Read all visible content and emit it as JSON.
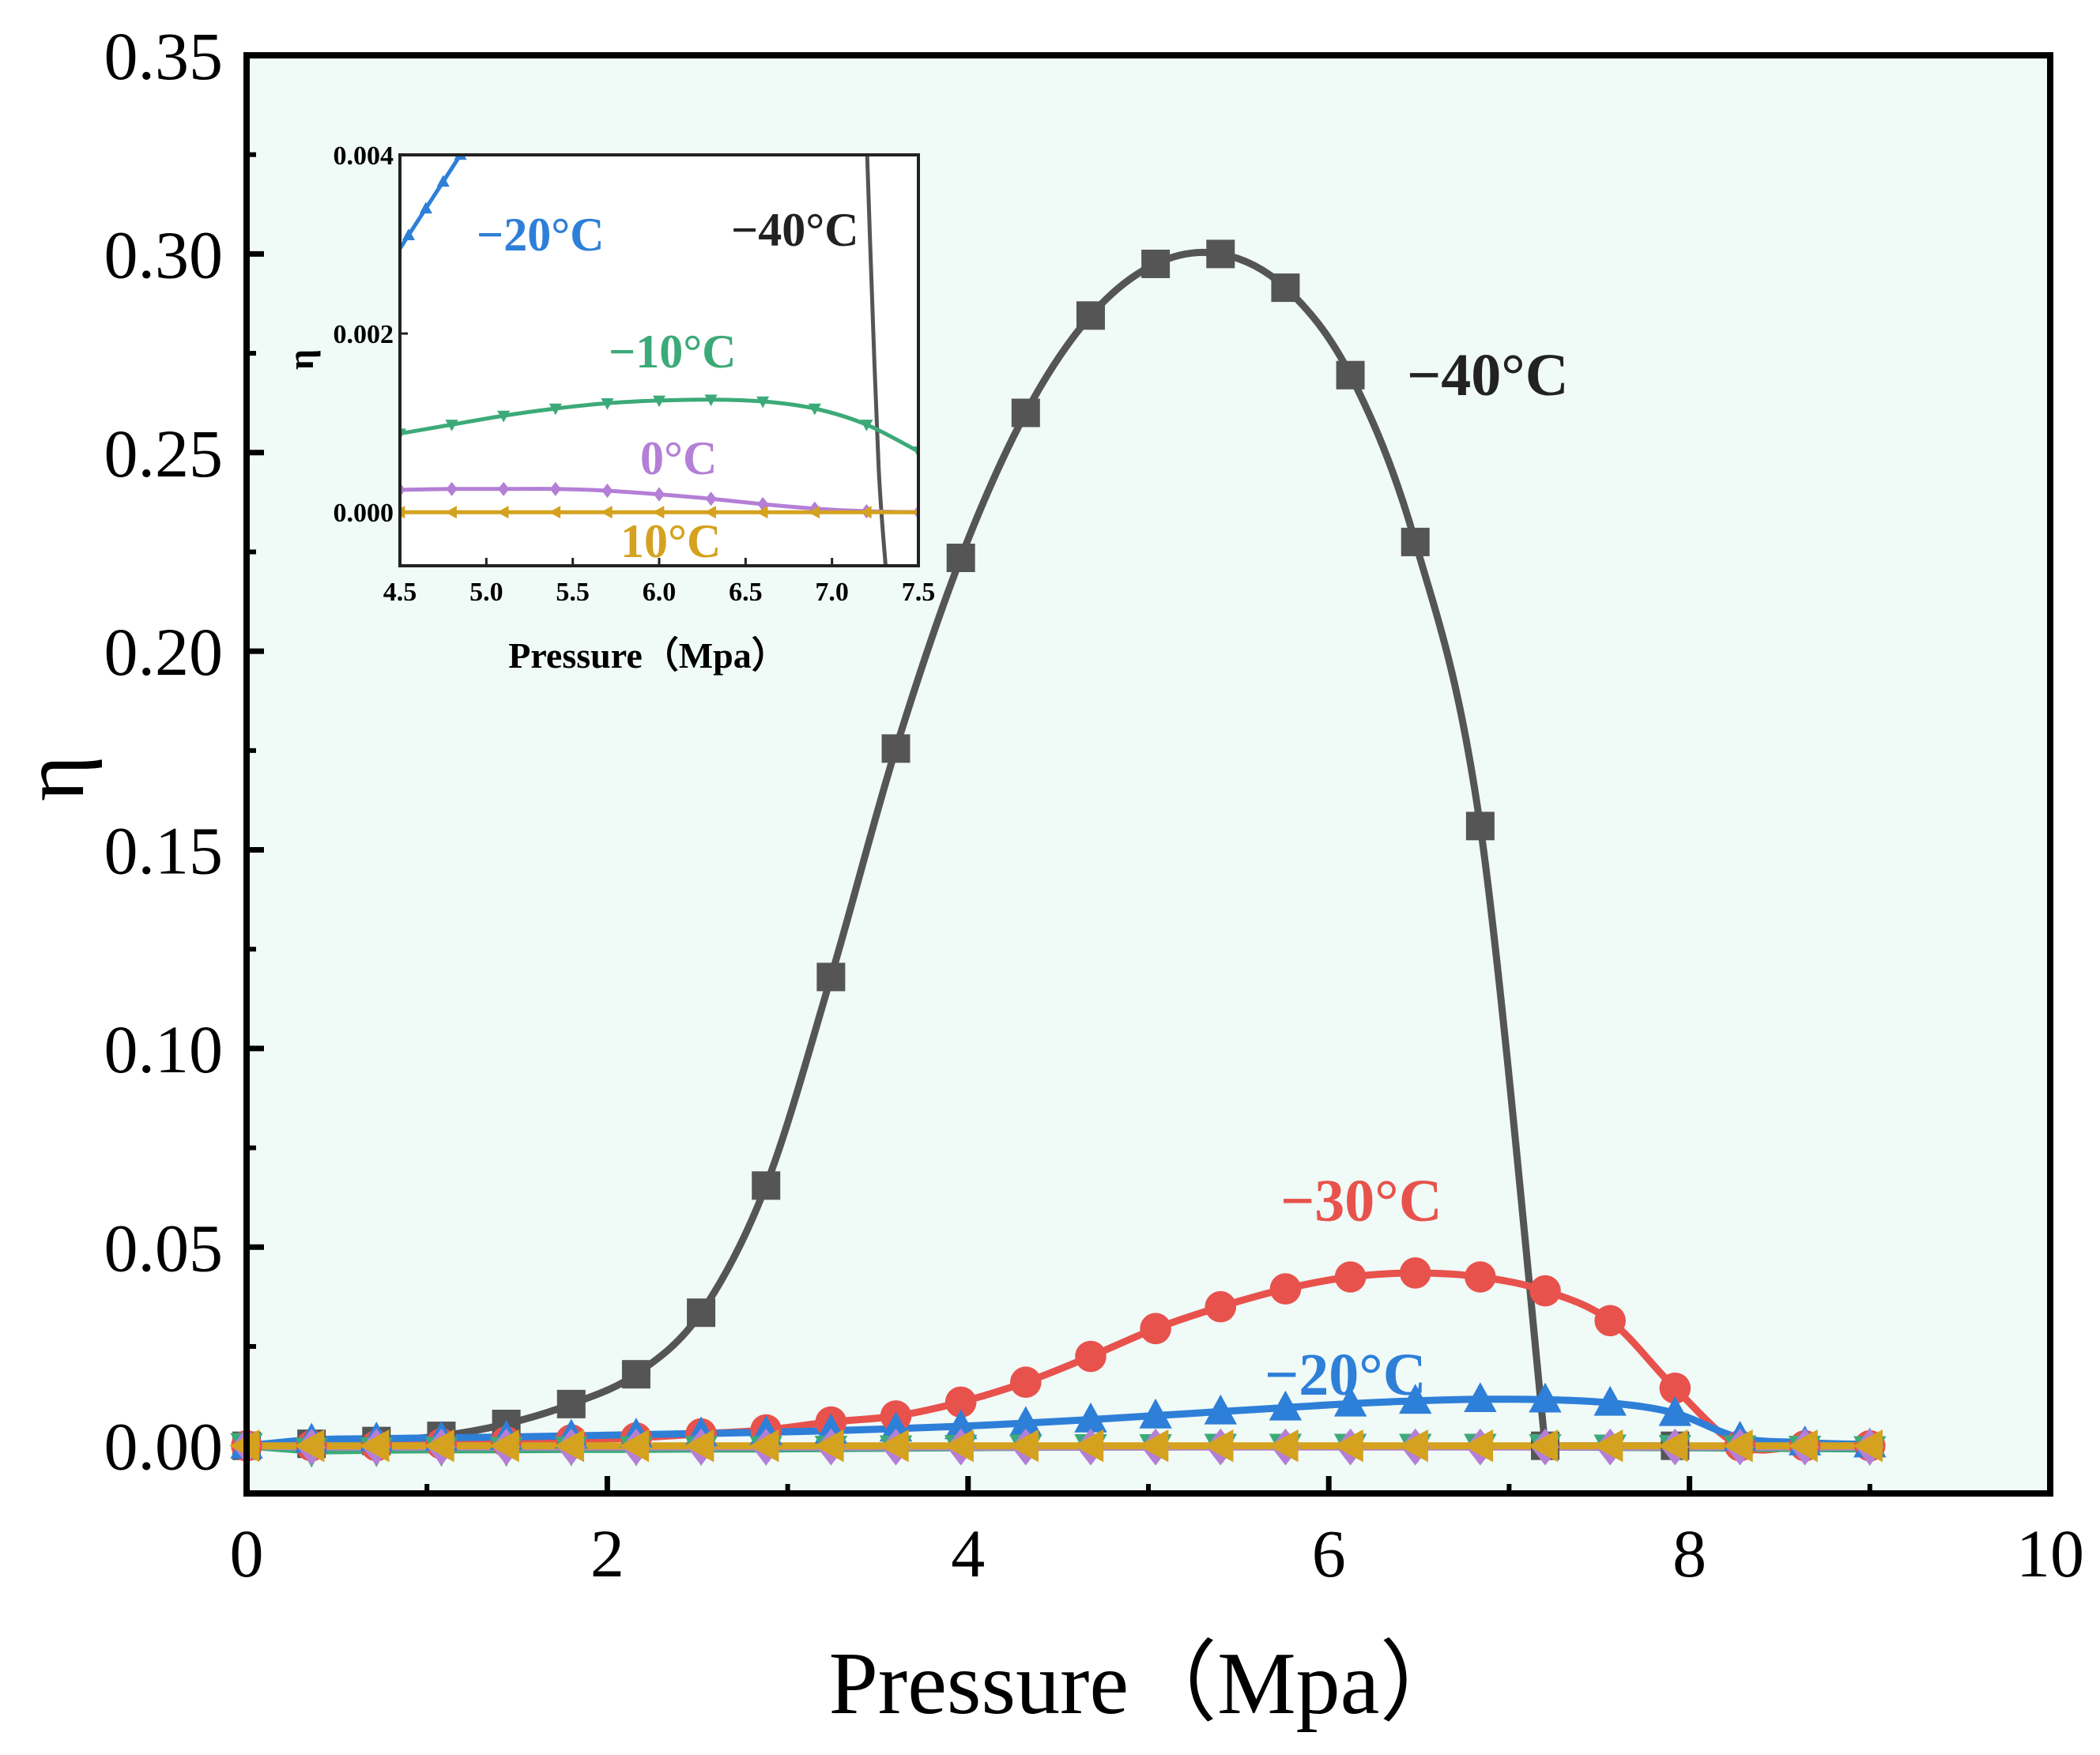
{
  "chart_data": [
    {
      "type": "line",
      "role": "main",
      "xlabel": "Pressure（Mpa）",
      "ylabel": "η",
      "xlim": [
        0,
        10
      ],
      "ylim": [
        -0.012,
        0.35
      ],
      "xticks": [
        "0",
        "2",
        "4",
        "6",
        "8",
        "10"
      ],
      "yticks": [
        "0.00",
        "0.05",
        "0.10",
        "0.15",
        "0.20",
        "0.25",
        "0.30",
        "0.35"
      ],
      "background": "#f0faf7",
      "series": [
        {
          "name": "−40°C",
          "color": "#555555",
          "marker": "square",
          "x": [
            0.0,
            0.36,
            0.72,
            1.08,
            1.44,
            1.8,
            2.16,
            2.52,
            2.88,
            3.24,
            3.6,
            3.96,
            4.32,
            4.68,
            5.04,
            5.4,
            5.76,
            6.12,
            6.48,
            6.84,
            7.2,
            7.92
          ],
          "y": [
            0.0,
            0.0005,
            0.0012,
            0.0025,
            0.0055,
            0.0105,
            0.018,
            0.0335,
            0.0655,
            0.118,
            0.1755,
            0.2235,
            0.26,
            0.2845,
            0.2975,
            0.3,
            0.2915,
            0.2695,
            0.2275,
            0.156,
            0.0,
            0.0
          ]
        },
        {
          "name": "−30°C",
          "color": "#e8524c",
          "marker": "circle",
          "x": [
            0.0,
            0.36,
            0.72,
            1.08,
            1.44,
            1.8,
            2.16,
            2.52,
            2.88,
            3.24,
            3.6,
            3.96,
            4.32,
            4.68,
            5.04,
            5.4,
            5.76,
            6.12,
            6.48,
            6.84,
            7.2,
            7.56,
            7.92,
            8.28,
            8.64,
            9.0
          ],
          "y": [
            0.0,
            0.0,
            0.0,
            0.0005,
            0.001,
            0.0015,
            0.002,
            0.003,
            0.004,
            0.006,
            0.0075,
            0.011,
            0.016,
            0.0225,
            0.0295,
            0.035,
            0.0395,
            0.0425,
            0.0435,
            0.0425,
            0.039,
            0.0315,
            0.0145,
            0.0,
            0.0,
            0.0
          ]
        },
        {
          "name": "−20°C",
          "color": "#2e7fd8",
          "marker": "triangle-up",
          "x": [
            0.0,
            0.36,
            0.72,
            1.08,
            1.44,
            1.8,
            2.16,
            2.52,
            2.88,
            3.24,
            3.6,
            3.96,
            4.32,
            4.68,
            5.04,
            5.4,
            5.76,
            6.12,
            6.48,
            6.84,
            7.2,
            7.56,
            7.92,
            8.28,
            8.64,
            9.0
          ],
          "y": [
            0.0,
            0.0015,
            0.0018,
            0.002,
            0.0022,
            0.0025,
            0.0028,
            0.0031,
            0.0034,
            0.0038,
            0.0043,
            0.0049,
            0.0057,
            0.0066,
            0.0076,
            0.0086,
            0.0096,
            0.0106,
            0.0113,
            0.0117,
            0.0116,
            0.0108,
            0.0082,
            0.002,
            0.0008,
            0.0003
          ]
        },
        {
          "name": "−10°C",
          "color": "#3caa78",
          "marker": "triangle-down",
          "x": [
            0.0,
            0.36,
            0.72,
            1.08,
            1.44,
            1.8,
            2.16,
            2.52,
            2.88,
            3.24,
            3.6,
            3.96,
            4.32,
            4.68,
            5.04,
            5.4,
            5.76,
            6.12,
            6.48,
            6.84,
            7.2,
            7.56,
            7.92,
            8.28,
            8.64,
            9.0
          ],
          "y": [
            0.0,
            -0.0012,
            -0.0011,
            -0.001,
            -0.001,
            -0.0009,
            -0.0009,
            -0.0008,
            -0.0008,
            -0.0007,
            -0.0006,
            -0.0005,
            -0.0004,
            -0.0003,
            -0.0003,
            -0.0002,
            -0.0002,
            -0.0002,
            -0.0002,
            -0.0002,
            -0.0003,
            -0.0004,
            -0.0005,
            -0.0006,
            -0.0007,
            -0.0008
          ]
        },
        {
          "name": "0°C",
          "color": "#b47fd6",
          "marker": "diamond",
          "x": [
            0.0,
            0.36,
            0.72,
            1.08,
            1.44,
            1.8,
            2.16,
            2.52,
            2.88,
            3.24,
            3.6,
            3.96,
            4.32,
            4.68,
            5.04,
            5.4,
            5.76,
            6.12,
            6.48,
            6.84,
            7.2,
            7.56,
            7.92,
            8.28,
            8.64,
            9.0
          ],
          "y": [
            0.0,
            -0.0003,
            -0.0003,
            -0.0003,
            -0.0003,
            -0.0003,
            -0.0003,
            -0.0003,
            -0.0003,
            -0.0003,
            -0.0003,
            -0.0003,
            -0.0003,
            -0.0003,
            -0.0003,
            -0.0003,
            -0.0003,
            -0.0003,
            -0.0003,
            -0.0003,
            -0.0003,
            -0.0003,
            -0.0003,
            -0.0003,
            -0.0003,
            -0.0003
          ]
        },
        {
          "name": "10°C",
          "color": "#d4a21f",
          "marker": "triangle-left",
          "x": [
            0.0,
            0.36,
            0.72,
            1.08,
            1.44,
            1.8,
            2.16,
            2.52,
            2.88,
            3.24,
            3.6,
            3.96,
            4.32,
            4.68,
            5.04,
            5.4,
            5.76,
            6.12,
            6.48,
            6.84,
            7.2,
            7.56,
            7.92,
            8.28,
            8.64,
            9.0
          ],
          "y": [
            0.0,
            0.0,
            0.0,
            0.0,
            0.0,
            0.0,
            0.0,
            0.0,
            0.0,
            0.0,
            0.0,
            0.0,
            0.0,
            0.0,
            0.0,
            0.0,
            0.0,
            0.0,
            0.0,
            0.0,
            0.0,
            0.0,
            0.0,
            0.0,
            0.0,
            0.0
          ]
        }
      ],
      "annotations": [
        {
          "text": "−40°C",
          "color": "#222222"
        },
        {
          "text": "−30°C",
          "color": "#e8524c"
        },
        {
          "text": "−20°C",
          "color": "#2e7fd8"
        }
      ]
    },
    {
      "type": "line",
      "role": "inset",
      "xlabel": "Pressure（Mpa）",
      "ylabel": "η",
      "xlim": [
        4.5,
        7.5
      ],
      "ylim": [
        -0.0006,
        0.004
      ],
      "xticks": [
        "4.5",
        "5.0",
        "5.5",
        "6.0",
        "6.5",
        "7.0",
        "7.5"
      ],
      "yticks": [
        "0.000",
        "0.002",
        "0.004"
      ],
      "series": [
        {
          "name": "−40°C",
          "color": "#555555",
          "x": [
            7.2,
            7.23,
            7.27,
            7.31
          ],
          "y": [
            0.0042,
            0.0025,
            0.0005,
            -0.0006
          ]
        },
        {
          "name": "−20°C",
          "color": "#2e7fd8",
          "x": [
            4.45,
            4.55,
            4.65,
            4.75,
            4.85
          ],
          "y": [
            0.0028,
            0.0031,
            0.0034,
            0.0037,
            0.004
          ]
        },
        {
          "name": "−10°C",
          "color": "#3caa78",
          "x": [
            4.5,
            4.8,
            5.1,
            5.4,
            5.7,
            6.0,
            6.3,
            6.6,
            6.9,
            7.2,
            7.5
          ],
          "y": [
            0.00088,
            0.00098,
            0.00108,
            0.00116,
            0.00122,
            0.00125,
            0.00126,
            0.00124,
            0.00116,
            0.00098,
            0.00068
          ]
        },
        {
          "name": "0°C",
          "color": "#b47fd6",
          "x": [
            4.5,
            4.8,
            5.1,
            5.4,
            5.7,
            6.0,
            6.3,
            6.6,
            6.9,
            7.2,
            7.5
          ],
          "y": [
            0.00025,
            0.00026,
            0.00026,
            0.00026,
            0.00024,
            0.0002,
            0.00015,
            9e-05,
            4e-05,
            1e-05,
            0.0
          ]
        },
        {
          "name": "10°C",
          "color": "#d4a21f",
          "x": [
            4.5,
            4.8,
            5.1,
            5.4,
            5.7,
            6.0,
            6.3,
            6.6,
            6.9,
            7.2,
            7.5
          ],
          "y": [
            0.0,
            0.0,
            0.0,
            0.0,
            0.0,
            0.0,
            0.0,
            0.0,
            0.0,
            0.0,
            0.0
          ]
        }
      ],
      "annotations": [
        {
          "text": "−20°C",
          "color": "#2e7fd8"
        },
        {
          "text": "−40°C",
          "color": "#222222"
        },
        {
          "text": "−10°C",
          "color": "#3caa78"
        },
        {
          "text": "0°C",
          "color": "#b47fd6"
        },
        {
          "text": "10°C",
          "color": "#d4a21f"
        }
      ]
    }
  ]
}
